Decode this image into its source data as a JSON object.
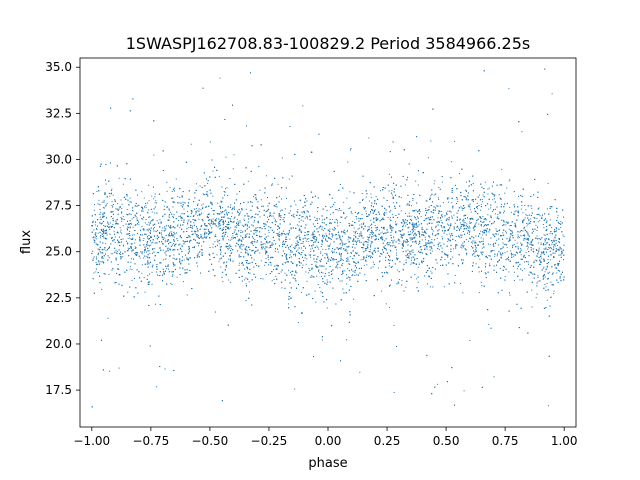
{
  "chart_data": {
    "type": "scatter",
    "title": "1SWASPJ162708.83-100829.2 Period 3584966.25s",
    "xlabel": "phase",
    "ylabel": "flux",
    "xlim": [
      -1.05,
      1.05
    ],
    "ylim": [
      15.5,
      35.5
    ],
    "xticks": [
      -1.0,
      -0.75,
      -0.5,
      -0.25,
      0.0,
      0.25,
      0.5,
      0.75,
      1.0
    ],
    "xtick_labels": [
      "−1.00",
      "−0.75",
      "−0.50",
      "−0.25",
      "0.00",
      "0.25",
      "0.50",
      "0.75",
      "1.00"
    ],
    "yticks": [
      17.5,
      20.0,
      22.5,
      25.0,
      27.5,
      30.0,
      32.5,
      35.0
    ],
    "ytick_labels": [
      "17.5",
      "20.0",
      "22.5",
      "25.0",
      "27.5",
      "30.0",
      "32.5",
      "35.0"
    ],
    "grid": false,
    "legend": "none",
    "color": "#1f77b4",
    "series": [
      {
        "phase_range": [
          -1.0,
          1.0
        ],
        "bulk_flux_range": [
          22.5,
          28.5
        ],
        "typical_flux": 25.5,
        "outlier_flux_range": [
          16.5,
          35.0
        ],
        "points": [
          [
            -1.0,
            25.4
          ],
          [
            -0.95,
            26.3
          ],
          [
            -0.9,
            25.8
          ],
          [
            -0.85,
            26.0
          ],
          [
            -0.8,
            25.6
          ],
          [
            -0.75,
            25.9
          ],
          [
            -0.7,
            25.7
          ],
          [
            -0.65,
            26.1
          ],
          [
            -0.6,
            25.9
          ],
          [
            -0.55,
            26.3
          ],
          [
            -0.5,
            26.6
          ],
          [
            -0.45,
            26.2
          ],
          [
            -0.4,
            26.1
          ],
          [
            -0.35,
            25.6
          ],
          [
            -0.3,
            26.0
          ],
          [
            -0.25,
            25.8
          ],
          [
            -0.2,
            25.7
          ],
          [
            -0.15,
            25.2
          ],
          [
            -0.1,
            25.6
          ],
          [
            -0.05,
            25.3
          ],
          [
            0.0,
            25.1
          ],
          [
            0.05,
            25.4
          ],
          [
            0.1,
            25.0
          ],
          [
            0.15,
            25.7
          ],
          [
            0.2,
            26.2
          ],
          [
            0.25,
            26.1
          ],
          [
            0.3,
            26.0
          ],
          [
            0.35,
            26.1
          ],
          [
            0.4,
            25.8
          ],
          [
            0.45,
            26.2
          ],
          [
            0.5,
            26.0
          ],
          [
            0.55,
            26.3
          ],
          [
            0.6,
            26.4
          ],
          [
            0.65,
            26.0
          ],
          [
            0.7,
            26.1
          ],
          [
            0.75,
            25.8
          ],
          [
            0.8,
            25.9
          ],
          [
            0.85,
            25.5
          ],
          [
            0.9,
            25.3
          ],
          [
            0.95,
            25.0
          ],
          [
            1.0,
            25.2
          ]
        ]
      }
    ]
  }
}
